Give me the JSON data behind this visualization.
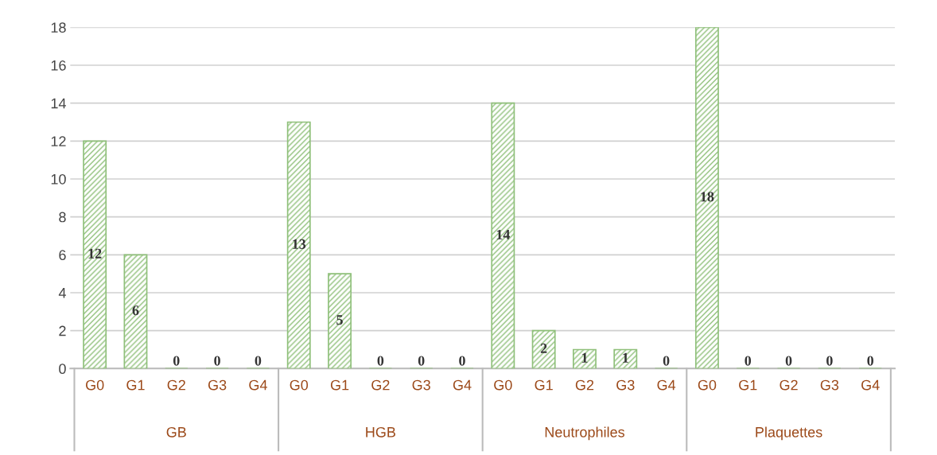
{
  "chart_data": {
    "type": "bar",
    "categories": [
      "G0",
      "G1",
      "G2",
      "G3",
      "G4",
      "G0",
      "G1",
      "G2",
      "G3",
      "G4",
      "G0",
      "G1",
      "G2",
      "G3",
      "G4",
      "G0",
      "G1",
      "G2",
      "G3",
      "G4"
    ],
    "values": [
      12,
      6,
      0,
      0,
      0,
      13,
      5,
      0,
      0,
      0,
      14,
      2,
      1,
      1,
      0,
      18,
      0,
      0,
      0,
      0
    ],
    "color": "#8fc07a",
    "annotations": [
      "GB",
      "HGB",
      "Neutrophiles",
      "Plaquettes"
    ],
    "ylim": [
      0,
      18
    ],
    "yticks": [
      0,
      2,
      4,
      6,
      8,
      10,
      12,
      14,
      16,
      18
    ],
    "grid": "y",
    "data_labels": true
  }
}
